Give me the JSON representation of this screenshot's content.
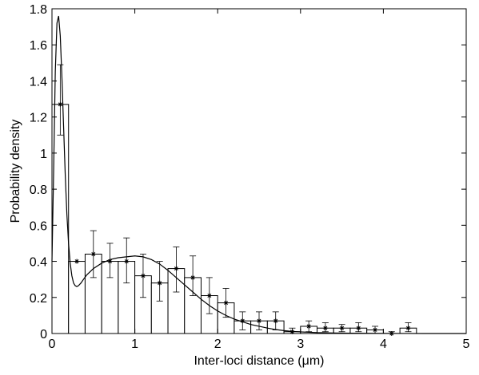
{
  "chart_data": {
    "type": "bar",
    "xlabel": "Inter-loci distance (μm)",
    "ylabel": "Probability density",
    "xlim": [
      0,
      5
    ],
    "ylim": [
      0,
      1.8
    ],
    "xticks": [
      0,
      1,
      2,
      3,
      4,
      5
    ],
    "yticks": [
      0,
      0.2,
      0.4,
      0.6,
      0.8,
      1,
      1.2,
      1.4,
      1.6,
      1.8
    ],
    "grid": false,
    "bin_width": 0.2,
    "bins": [
      {
        "x0": 0.0,
        "x1": 0.2,
        "value": 1.27,
        "err_low": 1.1,
        "err_high": 1.49
      },
      {
        "x0": 0.2,
        "x1": 0.4,
        "value": 0.4,
        "err_low": 0.4,
        "err_high": 0.4
      },
      {
        "x0": 0.4,
        "x1": 0.6,
        "value": 0.44,
        "err_low": 0.31,
        "err_high": 0.57
      },
      {
        "x0": 0.6,
        "x1": 0.8,
        "value": 0.4,
        "err_low": 0.31,
        "err_high": 0.5
      },
      {
        "x0": 0.8,
        "x1": 1.0,
        "value": 0.4,
        "err_low": 0.28,
        "err_high": 0.53
      },
      {
        "x0": 1.0,
        "x1": 1.2,
        "value": 0.32,
        "err_low": 0.2,
        "err_high": 0.44
      },
      {
        "x0": 1.2,
        "x1": 1.4,
        "value": 0.28,
        "err_low": 0.18,
        "err_high": 0.4
      },
      {
        "x0": 1.4,
        "x1": 1.6,
        "value": 0.36,
        "err_low": 0.23,
        "err_high": 0.48
      },
      {
        "x0": 1.6,
        "x1": 1.8,
        "value": 0.31,
        "err_low": 0.21,
        "err_high": 0.43
      },
      {
        "x0": 1.8,
        "x1": 2.0,
        "value": 0.21,
        "err_low": 0.11,
        "err_high": 0.31
      },
      {
        "x0": 2.0,
        "x1": 2.2,
        "value": 0.17,
        "err_low": 0.09,
        "err_high": 0.25
      },
      {
        "x0": 2.2,
        "x1": 2.4,
        "value": 0.07,
        "err_low": 0.02,
        "err_high": 0.12
      },
      {
        "x0": 2.4,
        "x1": 2.6,
        "value": 0.07,
        "err_low": 0.02,
        "err_high": 0.12
      },
      {
        "x0": 2.6,
        "x1": 2.8,
        "value": 0.07,
        "err_low": 0.02,
        "err_high": 0.12
      },
      {
        "x0": 2.8,
        "x1": 3.0,
        "value": 0.01,
        "err_low": 0.0,
        "err_high": 0.03
      },
      {
        "x0": 3.0,
        "x1": 3.2,
        "value": 0.04,
        "err_low": 0.01,
        "err_high": 0.07
      },
      {
        "x0": 3.2,
        "x1": 3.4,
        "value": 0.03,
        "err_low": 0.01,
        "err_high": 0.06
      },
      {
        "x0": 3.4,
        "x1": 3.6,
        "value": 0.03,
        "err_low": 0.01,
        "err_high": 0.05
      },
      {
        "x0": 3.6,
        "x1": 3.8,
        "value": 0.03,
        "err_low": 0.01,
        "err_high": 0.06
      },
      {
        "x0": 3.8,
        "x1": 4.0,
        "value": 0.02,
        "err_low": 0.0,
        "err_high": 0.04
      },
      {
        "x0": 4.0,
        "x1": 4.2,
        "value": 0.0,
        "err_low": 0.0,
        "err_high": 0.01
      },
      {
        "x0": 4.2,
        "x1": 4.4,
        "value": 0.03,
        "err_low": 0.01,
        "err_high": 0.06
      }
    ],
    "fit_curve": {
      "x": [
        0.0,
        0.02,
        0.04,
        0.06,
        0.08,
        0.1,
        0.12,
        0.14,
        0.16,
        0.18,
        0.2,
        0.22,
        0.24,
        0.26,
        0.28,
        0.3,
        0.32,
        0.35,
        0.38,
        0.42,
        0.5,
        0.6,
        0.7,
        0.8,
        0.9,
        1.0,
        1.1,
        1.2,
        1.3,
        1.4,
        1.5,
        1.6,
        1.7,
        1.8,
        1.9,
        2.0,
        2.1,
        2.2,
        2.3,
        2.4,
        2.5,
        2.6,
        2.7,
        2.8,
        2.9,
        3.0,
        3.2,
        3.4,
        3.6,
        3.8,
        4.0,
        4.5,
        5.0
      ],
      "y": [
        0.4,
        0.9,
        1.45,
        1.72,
        1.76,
        1.65,
        1.42,
        1.15,
        0.88,
        0.66,
        0.5,
        0.39,
        0.32,
        0.28,
        0.265,
        0.26,
        0.265,
        0.28,
        0.3,
        0.325,
        0.36,
        0.39,
        0.41,
        0.42,
        0.425,
        0.43,
        0.425,
        0.41,
        0.385,
        0.35,
        0.31,
        0.27,
        0.23,
        0.19,
        0.155,
        0.125,
        0.1,
        0.08,
        0.065,
        0.05,
        0.04,
        0.03,
        0.022,
        0.016,
        0.012,
        0.009,
        0.005,
        0.003,
        0.0015,
        0.001,
        0.0005,
        0.0,
        0.0
      ]
    }
  }
}
